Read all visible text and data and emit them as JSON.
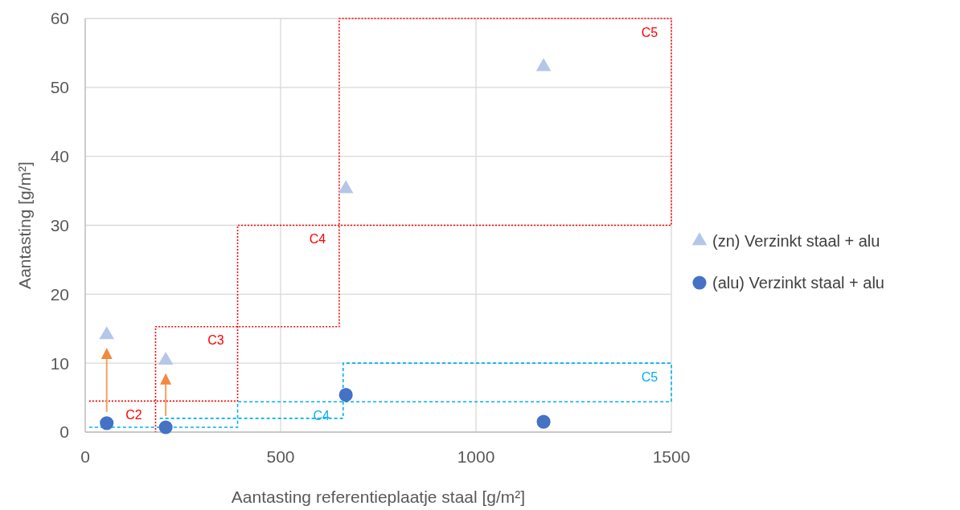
{
  "chart_data": {
    "type": "scatter",
    "xlabel": "Aantasting referentieplaatje staal [g/m²]",
    "ylabel": "Aantasting  [g/m²]",
    "xlim": [
      0,
      1500
    ],
    "xticks": [
      0,
      500,
      1000,
      1500
    ],
    "ylim": [
      0,
      60
    ],
    "yticks": [
      0,
      10,
      20,
      30,
      40,
      50,
      60
    ],
    "grid": true,
    "legend": "right",
    "series": [
      {
        "type": "line",
        "color": "#ff0000",
        "line_style": "dotted",
        "marker": "none",
        "x": [
          10,
          390,
          390,
          1500,
          1500,
          650,
          650,
          180,
          180
        ],
        "values": [
          4.5,
          4.5,
          30,
          30,
          60,
          60,
          15.3,
          15.3,
          0
        ]
      },
      {
        "type": "line",
        "color": "#00b0f0",
        "line_style": "dashed",
        "marker": "none",
        "x": [
          10,
          390,
          390,
          1500,
          1500,
          660,
          660,
          190
        ],
        "values": [
          0.7,
          0.7,
          4.4,
          4.4,
          10,
          10,
          2,
          2
        ]
      },
      {
        "name": "(zn) Verzinkt staal + alu",
        "color": "#b4c7e7",
        "marker": "triangle",
        "x": [
          55,
          206,
          667,
          1173
        ],
        "values": [
          14.1,
          10.4,
          35.3,
          53
        ]
      },
      {
        "name": "(alu) Verzinkt staal + alu",
        "color": "#4472c4",
        "marker": "circle",
        "x": [
          55,
          206,
          667,
          1173
        ],
        "values": [
          1.3,
          0.7,
          5.4,
          1.5
        ]
      }
    ],
    "annotations": [
      {
        "text": "C2",
        "x": 180,
        "y": 4.5
      },
      {
        "text": "C3",
        "x": 390,
        "y": 15.3
      },
      {
        "text": "C4",
        "x": 650,
        "y": 30
      },
      {
        "text": "C5",
        "x": 1500,
        "y": 60
      },
      {
        "text": "C4",
        "x": 660,
        "y": 4.4
      },
      {
        "text": "C5",
        "x": 1500,
        "y": 10
      }
    ]
  }
}
